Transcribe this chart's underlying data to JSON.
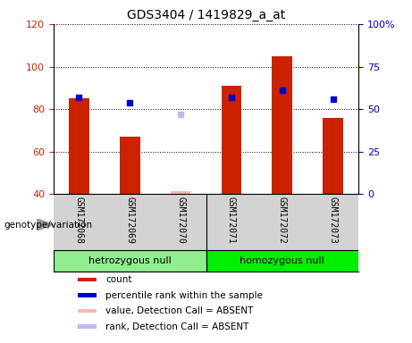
{
  "title": "GDS3404 / 1419829_a_at",
  "samples": [
    "GSM172068",
    "GSM172069",
    "GSM172070",
    "GSM172071",
    "GSM172072",
    "GSM172073"
  ],
  "count_values": [
    85,
    67,
    null,
    91,
    105,
    76
  ],
  "count_absent": [
    null,
    null,
    41.5,
    null,
    null,
    null
  ],
  "percentile_values": [
    57,
    54,
    null,
    57,
    61,
    56
  ],
  "percentile_absent": [
    null,
    null,
    47,
    null,
    null,
    null
  ],
  "absent_flags": [
    false,
    false,
    true,
    false,
    false,
    false
  ],
  "ylim_left": [
    40,
    120
  ],
  "ylim_right": [
    0,
    100
  ],
  "yticks_left": [
    40,
    60,
    80,
    100,
    120
  ],
  "yticks_right": [
    0,
    25,
    50,
    75,
    100
  ],
  "yticklabels_right": [
    "0",
    "25",
    "50",
    "75",
    "100%"
  ],
  "groups": [
    {
      "label": "hetrozygous null",
      "indices": [
        0,
        1,
        2
      ],
      "color": "#90EE90"
    },
    {
      "label": "homozygous null",
      "indices": [
        3,
        4,
        5
      ],
      "color": "#00EE00"
    }
  ],
  "bar_color": "#CC2200",
  "bar_color_absent": "#FFB6B6",
  "marker_color": "#0000CC",
  "marker_color_absent": "#BBBBEE",
  "bar_width": 0.4,
  "marker_size": 5,
  "background_color": "#FFFFFF",
  "plot_bg_color": "#FFFFFF",
  "legend_items": [
    {
      "label": "count",
      "color": "#CC2200"
    },
    {
      "label": "percentile rank within the sample",
      "color": "#0000CC"
    },
    {
      "label": "value, Detection Call = ABSENT",
      "color": "#FFB6B6"
    },
    {
      "label": "rank, Detection Call = ABSENT",
      "color": "#BBBBEE"
    }
  ],
  "genotype_label": "genotype/variation",
  "left_ylabel_color": "#CC2200",
  "right_ylabel_color": "#0000CC"
}
